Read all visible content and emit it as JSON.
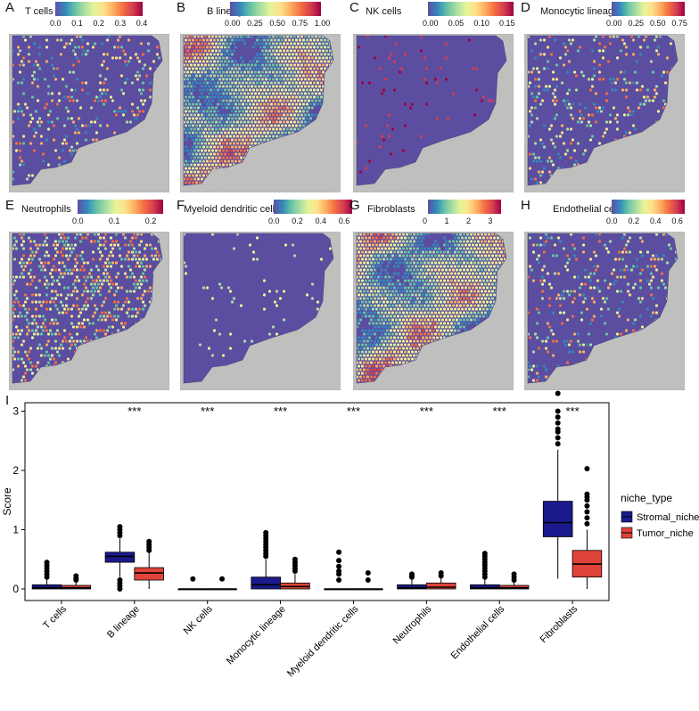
{
  "panels": [
    {
      "letter": "A",
      "title": "T cells",
      "ticks": [
        "0.0",
        "0.1",
        "0.2",
        "0.3",
        "0.4"
      ],
      "pattern": "sparse"
    },
    {
      "letter": "B",
      "title": "B lineage",
      "ticks": [
        "0.00",
        "0.25",
        "0.50",
        "0.75",
        "1.00"
      ],
      "pattern": "structured"
    },
    {
      "letter": "C",
      "title": "NK cells",
      "ticks": [
        "0.00",
        "0.05",
        "0.10",
        "0.15"
      ],
      "pattern": "low"
    },
    {
      "letter": "D",
      "title": "Monocytic lineage",
      "ticks": [
        "0.00",
        "0.25",
        "0.50",
        "0.75"
      ],
      "pattern": "sparse"
    },
    {
      "letter": "E",
      "title": "Neutrophils",
      "ticks": [
        "0.0",
        "0.1",
        "0.2"
      ],
      "pattern": "medium"
    },
    {
      "letter": "F",
      "title": "Myeloid dendritic cells",
      "ticks": [
        "0.0",
        "0.2",
        "0.4",
        "0.6"
      ],
      "pattern": "low"
    },
    {
      "letter": "G",
      "title": "Fibroblasts",
      "ticks": [
        "0",
        "1",
        "2",
        "3"
      ],
      "pattern": "structured"
    },
    {
      "letter": "H",
      "title": "Endothelial cells",
      "ticks": [
        "0.0",
        "0.2",
        "0.4",
        "0.6"
      ],
      "pattern": "sparse"
    }
  ],
  "panel_i_label": "I",
  "chart_data": {
    "type": "boxplot",
    "ylabel": "Score",
    "ylim": [
      -0.1,
      3.5
    ],
    "yticks": [
      "0",
      "1",
      "2",
      "3"
    ],
    "categories": [
      "T cells",
      "B lineage",
      "NK cells",
      "Monocytic lineage",
      "Myeloid dendritic cells",
      "Neutrophils",
      "Endothelial cells",
      "Fibroblasts"
    ],
    "significance": [
      "",
      "***",
      "***",
      "***",
      "***",
      "***",
      "***",
      "***"
    ],
    "legend": {
      "title": "niche_type",
      "entries": [
        "Stromal_niche",
        "Tumor_niche"
      ]
    },
    "colors": {
      "Stromal_niche": "#1a1a8c",
      "Tumor_niche": "#e0433a"
    },
    "series": [
      {
        "name": "Stromal_niche",
        "boxes": [
          {
            "min": 0.0,
            "q1": 0.0,
            "median": 0.02,
            "q3": 0.07,
            "max": 0.17,
            "outliers": [
              0.2,
              0.25,
              0.3,
              0.35,
              0.4,
              0.45
            ]
          },
          {
            "min": 0.2,
            "q1": 0.45,
            "median": 0.55,
            "q3": 0.62,
            "max": 0.85,
            "outliers": [
              0.0,
              0.05,
              0.1,
              0.15,
              0.9,
              0.95,
              1.0,
              1.05
            ]
          },
          {
            "min": 0.0,
            "q1": 0.0,
            "median": 0.0,
            "q3": 0.0,
            "max": 0.0,
            "outliers": [
              0.17
            ]
          },
          {
            "min": 0.0,
            "q1": 0.0,
            "median": 0.07,
            "q3": 0.2,
            "max": 0.5,
            "outliers": [
              0.55,
              0.6,
              0.65,
              0.7,
              0.75,
              0.8,
              0.85,
              0.9,
              0.95
            ]
          },
          {
            "min": 0.0,
            "q1": 0.0,
            "median": 0.0,
            "q3": 0.0,
            "max": 0.0,
            "outliers": [
              0.15,
              0.25,
              0.3,
              0.38,
              0.48,
              0.62
            ]
          },
          {
            "min": 0.0,
            "q1": 0.0,
            "median": 0.02,
            "q3": 0.07,
            "max": 0.17,
            "outliers": [
              0.2,
              0.22,
              0.25
            ]
          },
          {
            "min": 0.0,
            "q1": 0.0,
            "median": 0.02,
            "q3": 0.07,
            "max": 0.17,
            "outliers": [
              0.2,
              0.25,
              0.3,
              0.35,
              0.4,
              0.45,
              0.5,
              0.55,
              0.6
            ]
          },
          {
            "min": 0.17,
            "q1": 0.88,
            "median": 1.12,
            "q3": 1.48,
            "max": 2.35,
            "outliers": [
              2.45,
              2.55,
              2.65,
              2.7,
              2.8,
              2.9,
              3.0,
              3.3
            ]
          }
        ]
      },
      {
        "name": "Tumor_niche",
        "boxes": [
          {
            "min": 0.0,
            "q1": 0.0,
            "median": 0.02,
            "q3": 0.06,
            "max": 0.13,
            "outliers": [
              0.15,
              0.18,
              0.22
            ]
          },
          {
            "min": 0.0,
            "q1": 0.15,
            "median": 0.27,
            "q3": 0.36,
            "max": 0.62,
            "outliers": [
              0.65,
              0.7,
              0.75,
              0.8
            ]
          },
          {
            "min": 0.0,
            "q1": 0.0,
            "median": 0.0,
            "q3": 0.0,
            "max": 0.0,
            "outliers": [
              0.17
            ]
          },
          {
            "min": 0.0,
            "q1": 0.0,
            "median": 0.04,
            "q3": 0.1,
            "max": 0.25,
            "outliers": [
              0.3,
              0.35,
              0.4,
              0.45,
              0.5
            ]
          },
          {
            "min": 0.0,
            "q1": 0.0,
            "median": 0.0,
            "q3": 0.0,
            "max": 0.0,
            "outliers": [
              0.15,
              0.27
            ]
          },
          {
            "min": 0.0,
            "q1": 0.0,
            "median": 0.03,
            "q3": 0.1,
            "max": 0.2,
            "outliers": [
              0.22,
              0.27
            ]
          },
          {
            "min": 0.0,
            "q1": 0.0,
            "median": 0.02,
            "q3": 0.06,
            "max": 0.12,
            "outliers": [
              0.15,
              0.2,
              0.25
            ]
          },
          {
            "min": 0.0,
            "q1": 0.2,
            "median": 0.42,
            "q3": 0.65,
            "max": 1.0,
            "outliers": [
              1.1,
              1.2,
              1.3,
              1.4,
              1.5,
              1.55,
              1.6,
              2.03
            ]
          }
        ]
      }
    ]
  }
}
